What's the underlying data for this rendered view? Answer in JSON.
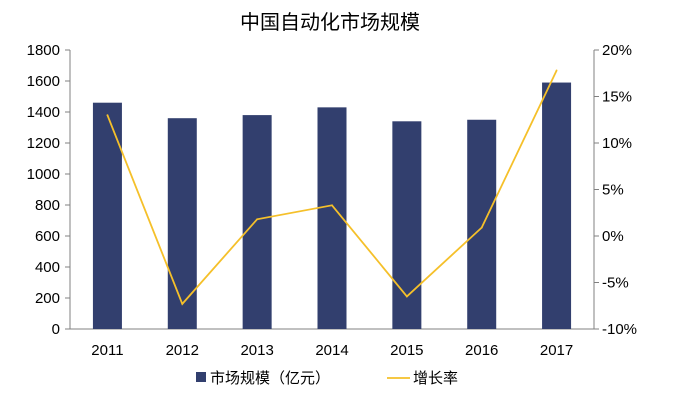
{
  "chart_data": {
    "type": "bar",
    "title": "中国自动化市场规模",
    "categories": [
      "2011",
      "2012",
      "2013",
      "2014",
      "2015",
      "2016",
      "2017"
    ],
    "series": [
      {
        "name": "市场规模（亿元）",
        "type": "bar",
        "axis": "left",
        "color": "#323f6e",
        "values": [
          1460,
          1360,
          1380,
          1430,
          1340,
          1350,
          1590
        ]
      },
      {
        "name": "增长率",
        "type": "line",
        "axis": "right",
        "color": "#f5c02a",
        "values": [
          0.13,
          -0.073,
          0.018,
          0.033,
          -0.065,
          0.009,
          0.178
        ]
      }
    ],
    "y_left": {
      "min": 0,
      "max": 1800,
      "step": 200,
      "tick_labels": [
        "0",
        "200",
        "400",
        "600",
        "800",
        "1000",
        "1200",
        "1400",
        "1600",
        "1800"
      ]
    },
    "y_right": {
      "min": -0.1,
      "max": 0.2,
      "step": 0.05,
      "tick_labels": [
        "-10%",
        "-5%",
        "0%",
        "5%",
        "10%",
        "15%",
        "20%"
      ]
    },
    "grid": false,
    "legend_position": "bottom-center"
  }
}
